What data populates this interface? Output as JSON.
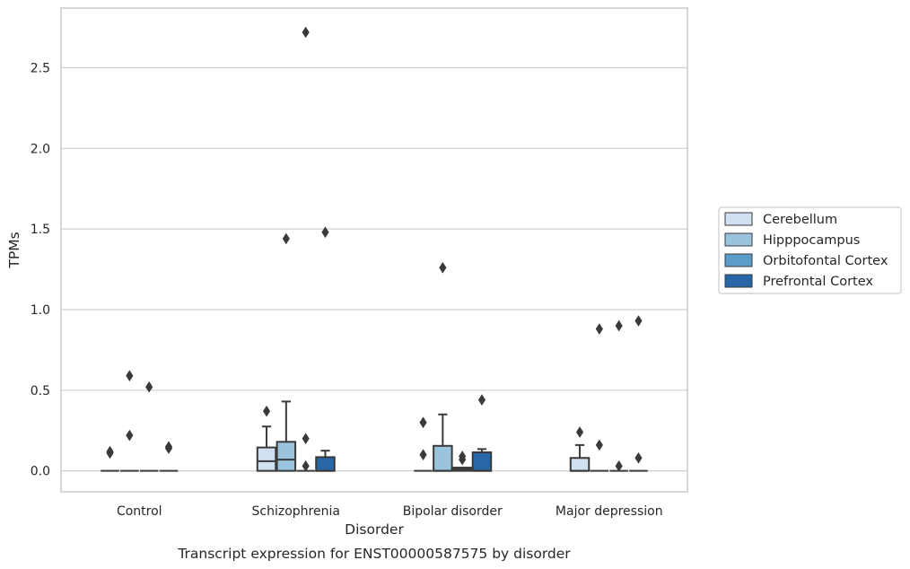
{
  "caption": "Transcript expression for ENST00000587575 by disorder",
  "colors": {
    "Cerebellum": "#d1e0f0",
    "Hipppocampus": "#9ac3dd",
    "Orbitofontal Cortex": "#5a9dc9",
    "Prefrontal Cortex": "#2867a7",
    "edge": "#3a3a3a",
    "grid": "#cfcfcf"
  },
  "chart_data": {
    "type": "box",
    "title": "",
    "xlabel": "Disorder",
    "ylabel": "TPMs",
    "ylim": [
      -0.13,
      2.87
    ],
    "yticks": [
      0.0,
      0.5,
      1.0,
      1.5,
      2.0,
      2.5
    ],
    "ytick_labels": [
      "0.0",
      "0.5",
      "1.0",
      "1.5",
      "2.0",
      "2.5"
    ],
    "grid": "y",
    "legend_position": "right",
    "categories": [
      "Control",
      "Schizophrenia",
      "Bipolar disorder",
      "Major depression"
    ],
    "series": [
      {
        "name": "Cerebellum",
        "boxes": [
          {
            "q1": 0,
            "median": 0,
            "q3": 0,
            "whisker_low": 0,
            "whisker_high": 0,
            "outliers": [
              0.11,
              0.12
            ]
          },
          {
            "q1": 0,
            "median": 0.06,
            "q3": 0.145,
            "whisker_low": 0,
            "whisker_high": 0.275,
            "outliers": [
              0.37
            ]
          },
          {
            "q1": 0,
            "median": 0,
            "q3": 0,
            "whisker_low": 0,
            "whisker_high": 0,
            "outliers": [
              0.1,
              0.3
            ]
          },
          {
            "q1": 0,
            "median": 0,
            "q3": 0.08,
            "whisker_low": 0,
            "whisker_high": 0.16,
            "outliers": [
              0.24
            ]
          }
        ]
      },
      {
        "name": "Hipppocampus",
        "boxes": [
          {
            "q1": 0,
            "median": 0,
            "q3": 0,
            "whisker_low": 0,
            "whisker_high": 0,
            "outliers": [
              0.22,
              0.59
            ]
          },
          {
            "q1": 0,
            "median": 0.07,
            "q3": 0.18,
            "whisker_low": 0,
            "whisker_high": 0.43,
            "outliers": [
              1.44
            ]
          },
          {
            "q1": 0,
            "median": 0,
            "q3": 0.155,
            "whisker_low": 0,
            "whisker_high": 0.35,
            "outliers": [
              1.26
            ]
          },
          {
            "q1": 0,
            "median": 0,
            "q3": 0,
            "whisker_low": 0,
            "whisker_high": 0,
            "outliers": [
              0.16,
              0.88
            ]
          }
        ]
      },
      {
        "name": "Orbitofontal Cortex",
        "boxes": [
          {
            "q1": 0,
            "median": 0,
            "q3": 0,
            "whisker_low": 0,
            "whisker_high": 0,
            "outliers": [
              0.52
            ]
          },
          {
            "q1": 0,
            "median": 0,
            "q3": 0,
            "whisker_low": 0,
            "whisker_high": 0,
            "outliers": [
              0.03,
              0.2,
              2.72
            ]
          },
          {
            "q1": 0,
            "median": 0.01,
            "q3": 0.02,
            "whisker_low": 0,
            "whisker_high": 0.02,
            "outliers": [
              0.07,
              0.09
            ]
          },
          {
            "q1": 0,
            "median": 0,
            "q3": 0,
            "whisker_low": 0,
            "whisker_high": 0,
            "outliers": [
              0.03,
              0.9
            ]
          }
        ]
      },
      {
        "name": "Prefrontal Cortex",
        "boxes": [
          {
            "q1": 0,
            "median": 0,
            "q3": 0,
            "whisker_low": 0,
            "whisker_high": 0,
            "outliers": [
              0.14,
              0.15
            ]
          },
          {
            "q1": 0,
            "median": 0,
            "q3": 0.085,
            "whisker_low": 0,
            "whisker_high": 0.125,
            "outliers": [
              1.48
            ]
          },
          {
            "q1": 0,
            "median": 0,
            "q3": 0.115,
            "whisker_low": 0,
            "whisker_high": 0.135,
            "outliers": [
              0.44
            ]
          },
          {
            "q1": 0,
            "median": 0,
            "q3": 0,
            "whisker_low": 0,
            "whisker_high": 0,
            "outliers": [
              0.08,
              0.93
            ]
          }
        ]
      }
    ]
  }
}
